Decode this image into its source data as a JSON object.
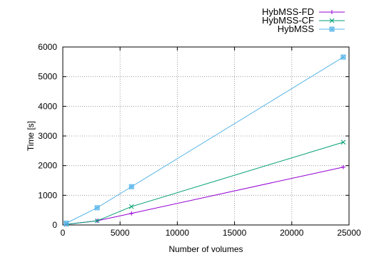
{
  "chart_data": {
    "type": "line",
    "xlabel": "Number of volumes",
    "ylabel": "Time [s]",
    "xlim": [
      0,
      25000
    ],
    "ylim": [
      0,
      6000
    ],
    "xticks": [
      0,
      5000,
      10000,
      15000,
      20000,
      25000
    ],
    "yticks": [
      0,
      1000,
      2000,
      3000,
      4000,
      5000,
      6000
    ],
    "grid": true,
    "legend_position": "top-right",
    "series": [
      {
        "name": "HybMSS-FD",
        "color": "#9400d3",
        "marker": "plus",
        "x": [
          300,
          3000,
          6000,
          24500
        ],
        "y": [
          20,
          140,
          390,
          1950
        ]
      },
      {
        "name": "HybMSS-CF",
        "color": "#009e73",
        "marker": "cross",
        "x": [
          300,
          3000,
          6000,
          24500
        ],
        "y": [
          20,
          140,
          620,
          2790
        ]
      },
      {
        "name": "HybMSS",
        "color": "#56b4e9",
        "marker": "square-star",
        "x": [
          300,
          3000,
          6000,
          24500
        ],
        "y": [
          60,
          580,
          1290,
          5660
        ]
      }
    ]
  }
}
